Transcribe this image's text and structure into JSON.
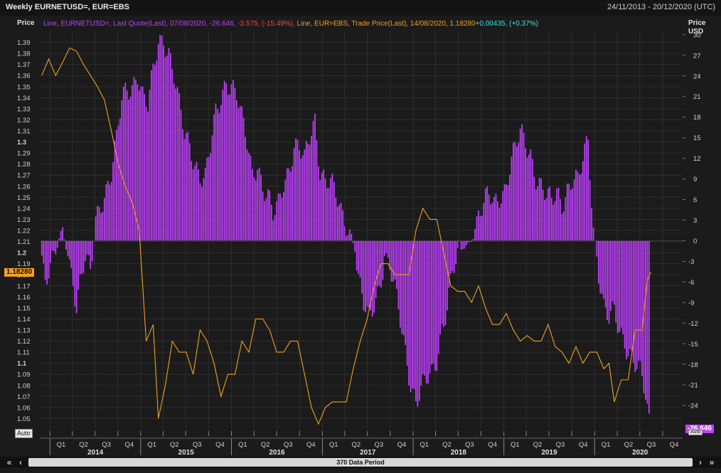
{
  "window": {
    "title": "Weekly EURNETUSD=, EUR=EBS",
    "date_range": "24/11/2013 - 20/12/2020 (UTC)"
  },
  "legend": {
    "s1_text": "Line, EURNETUSD=, Last Quote(Last), 07/08/2020, -26.646,",
    "s1_change": " -3.575, (-15.49%),",
    "s2_text": " Line, EUR=EBS, Trade Price(Last), 14/08/2020, 1.18280",
    "s2_change": "+0.00435, (+0.37%)"
  },
  "axis_labels": {
    "left_title": "Price",
    "right_title_1": "Price",
    "right_title_2": "USD"
  },
  "last_value_tags": {
    "left": "1.18280",
    "right": "-26.646"
  },
  "auto_buttons": {
    "left": "Auto",
    "right": "Auto"
  },
  "scrollbar": {
    "label": "370 Data Period",
    "btn_first": "«",
    "btn_prev": "‹",
    "btn_next": "›",
    "btn_last": "»"
  },
  "colors": {
    "background": "#1b1b1b",
    "grid": "#2e2e2e",
    "positioning": "#c040ff",
    "eurusd": "#f0a020",
    "legend_red": "#ff4040",
    "legend_cyan": "#40e0e0"
  },
  "chart_data": {
    "type": "bar",
    "title": "Weekly EURNETUSD=, EUR=EBS",
    "x_range": [
      "2013-11-24",
      "2020-12-20"
    ],
    "x_quarter_labels": [
      "Q1",
      "Q2",
      "Q3",
      "Q4",
      "Q1",
      "Q2",
      "Q3",
      "Q4",
      "Q1",
      "Q2",
      "Q3",
      "Q4",
      "Q1",
      "Q2",
      "Q3",
      "Q4",
      "Q1",
      "Q2",
      "Q3",
      "Q4",
      "Q1",
      "Q2",
      "Q3",
      "Q4",
      "Q1",
      "Q2",
      "Q3",
      "Q4"
    ],
    "x_year_labels": [
      "2014",
      "2015",
      "2016",
      "2017",
      "2018",
      "2019",
      "2020"
    ],
    "left_axis": {
      "label": "Price",
      "ylim": [
        1.04,
        1.4
      ],
      "ticks": [
        1.05,
        1.06,
        1.07,
        1.08,
        1.09,
        1.1,
        1.11,
        1.12,
        1.13,
        1.14,
        1.15,
        1.16,
        1.17,
        1.18,
        1.19,
        1.2,
        1.21,
        1.22,
        1.23,
        1.24,
        1.25,
        1.26,
        1.27,
        1.28,
        1.29,
        1.3,
        1.31,
        1.32,
        1.33,
        1.34,
        1.35,
        1.36,
        1.37,
        1.38,
        1.39
      ]
    },
    "right_axis": {
      "label": "Price USD",
      "ylim": [
        -27.5,
        30.5
      ],
      "ticks": [
        30,
        27,
        24,
        21,
        18,
        15,
        12,
        9,
        6,
        3,
        0,
        -3,
        -6,
        -9,
        -12,
        -15,
        -18,
        -21,
        -24
      ]
    },
    "series": [
      {
        "name": "EURNETUSD=",
        "kind": "bar",
        "axis": "right",
        "points": [
          [
            "2013-11-29",
            -2
          ],
          [
            "2013-12-13",
            -5
          ],
          [
            "2013-12-27",
            -4
          ],
          [
            "2014-01-17",
            -3
          ],
          [
            "2014-02-07",
            0
          ],
          [
            "2014-02-21",
            1.5
          ],
          [
            "2014-03-14",
            -2
          ],
          [
            "2014-04-04",
            -5
          ],
          [
            "2014-04-18",
            -9
          ],
          [
            "2014-05-02",
            -6
          ],
          [
            "2014-05-23",
            -3
          ],
          [
            "2014-06-13",
            -5.5
          ],
          [
            "2014-07-04",
            3
          ],
          [
            "2014-07-25",
            6
          ],
          [
            "2014-08-15",
            8
          ],
          [
            "2014-09-05",
            10
          ],
          [
            "2014-09-26",
            14
          ],
          [
            "2014-10-17",
            20
          ],
          [
            "2014-11-07",
            22
          ],
          [
            "2014-11-28",
            23
          ],
          [
            "2014-12-19",
            25
          ],
          [
            "2015-01-09",
            21
          ],
          [
            "2015-01-30",
            19
          ],
          [
            "2015-02-20",
            24
          ],
          [
            "2015-03-13",
            29
          ],
          [
            "2015-04-03",
            30
          ],
          [
            "2015-04-24",
            28
          ],
          [
            "2015-05-15",
            24
          ],
          [
            "2015-06-05",
            19
          ],
          [
            "2015-06-26",
            15
          ],
          [
            "2015-07-17",
            14
          ],
          [
            "2015-08-07",
            12
          ],
          [
            "2015-08-28",
            10
          ],
          [
            "2015-09-18",
            9
          ],
          [
            "2015-10-09",
            13
          ],
          [
            "2015-10-30",
            18
          ],
          [
            "2015-11-20",
            21
          ],
          [
            "2015-12-11",
            24
          ],
          [
            "2016-01-01",
            23
          ],
          [
            "2016-01-22",
            21
          ],
          [
            "2016-02-12",
            17
          ],
          [
            "2016-03-04",
            14
          ],
          [
            "2016-03-25",
            10
          ],
          [
            "2016-04-15",
            12
          ],
          [
            "2016-05-06",
            8
          ],
          [
            "2016-05-27",
            6
          ],
          [
            "2016-06-17",
            3
          ],
          [
            "2016-07-08",
            5
          ],
          [
            "2016-07-29",
            9
          ],
          [
            "2016-08-19",
            11
          ],
          [
            "2016-09-09",
            14
          ],
          [
            "2016-09-30",
            13
          ],
          [
            "2016-10-21",
            11
          ],
          [
            "2016-11-11",
            15
          ],
          [
            "2016-12-02",
            18
          ],
          [
            "2016-12-23",
            11
          ],
          [
            "2017-01-13",
            9
          ],
          [
            "2017-02-03",
            8
          ],
          [
            "2017-02-24",
            6
          ],
          [
            "2017-03-17",
            4
          ],
          [
            "2017-04-07",
            3
          ],
          [
            "2017-04-28",
            1
          ],
          [
            "2017-05-12",
            -1
          ],
          [
            "2017-05-26",
            -6
          ],
          [
            "2017-06-16",
            -10
          ],
          [
            "2017-07-07",
            -12
          ],
          [
            "2017-07-28",
            -9
          ],
          [
            "2017-08-18",
            -6
          ],
          [
            "2017-09-08",
            -2
          ],
          [
            "2017-09-29",
            -4
          ],
          [
            "2017-10-20",
            -8
          ],
          [
            "2017-11-10",
            -12
          ],
          [
            "2017-12-01",
            -16
          ],
          [
            "2017-12-22",
            -20
          ],
          [
            "2018-01-12",
            -23
          ],
          [
            "2018-02-02",
            -22
          ],
          [
            "2018-02-23",
            -21
          ],
          [
            "2018-03-16",
            -20
          ],
          [
            "2018-04-06",
            -17
          ],
          [
            "2018-04-27",
            -12
          ],
          [
            "2018-05-18",
            -9
          ],
          [
            "2018-06-08",
            -5
          ],
          [
            "2018-06-29",
            -3
          ],
          [
            "2018-07-20",
            -1
          ],
          [
            "2018-08-10",
            -0.5
          ],
          [
            "2018-08-31",
            1
          ],
          [
            "2018-09-21",
            4
          ],
          [
            "2018-10-12",
            5
          ],
          [
            "2018-11-02",
            6
          ],
          [
            "2018-11-23",
            5
          ],
          [
            "2018-12-14",
            7
          ],
          [
            "2019-01-04",
            8
          ],
          [
            "2019-01-25",
            11
          ],
          [
            "2019-02-15",
            13
          ],
          [
            "2019-03-08",
            15
          ],
          [
            "2019-03-29",
            14
          ],
          [
            "2019-04-19",
            13
          ],
          [
            "2019-05-10",
            10
          ],
          [
            "2019-05-31",
            8
          ],
          [
            "2019-06-21",
            6
          ],
          [
            "2019-07-12",
            5
          ],
          [
            "2019-08-02",
            7
          ],
          [
            "2019-08-23",
            6
          ],
          [
            "2019-09-13",
            8
          ],
          [
            "2019-10-04",
            9
          ],
          [
            "2019-10-25",
            8
          ],
          [
            "2019-11-15",
            11
          ],
          [
            "2019-12-06",
            15
          ],
          [
            "2019-12-27",
            2
          ],
          [
            "2020-01-17",
            -4
          ],
          [
            "2020-02-07",
            -10
          ],
          [
            "2020-02-28",
            -12
          ],
          [
            "2020-03-20",
            -11
          ],
          [
            "2020-04-10",
            -13
          ],
          [
            "2020-05-01",
            -14
          ],
          [
            "2020-05-22",
            -16
          ],
          [
            "2020-06-12",
            -18
          ],
          [
            "2020-07-03",
            -20
          ],
          [
            "2020-07-24",
            -23
          ],
          [
            "2020-08-07",
            -26.646
          ]
        ]
      },
      {
        "name": "EUR=EBS",
        "kind": "line",
        "axis": "left",
        "points": [
          [
            "2013-11-29",
            1.36
          ],
          [
            "2013-12-27",
            1.375
          ],
          [
            "2014-01-24",
            1.36
          ],
          [
            "2014-02-21",
            1.372
          ],
          [
            "2014-03-21",
            1.385
          ],
          [
            "2014-04-18",
            1.382
          ],
          [
            "2014-05-16",
            1.37
          ],
          [
            "2014-06-13",
            1.36
          ],
          [
            "2014-07-11",
            1.35
          ],
          [
            "2014-08-08",
            1.338
          ],
          [
            "2014-09-05",
            1.31
          ],
          [
            "2014-10-03",
            1.28
          ],
          [
            "2014-10-31",
            1.26
          ],
          [
            "2014-11-28",
            1.245
          ],
          [
            "2014-12-26",
            1.22
          ],
          [
            "2015-01-23",
            1.12
          ],
          [
            "2015-02-20",
            1.135
          ],
          [
            "2015-03-13",
            1.05
          ],
          [
            "2015-04-10",
            1.08
          ],
          [
            "2015-05-08",
            1.12
          ],
          [
            "2015-06-05",
            1.11
          ],
          [
            "2015-07-03",
            1.11
          ],
          [
            "2015-07-31",
            1.09
          ],
          [
            "2015-08-28",
            1.13
          ],
          [
            "2015-09-25",
            1.12
          ],
          [
            "2015-10-23",
            1.1
          ],
          [
            "2015-11-20",
            1.07
          ],
          [
            "2015-12-18",
            1.09
          ],
          [
            "2016-01-15",
            1.09
          ],
          [
            "2016-02-12",
            1.12
          ],
          [
            "2016-03-11",
            1.11
          ],
          [
            "2016-04-08",
            1.14
          ],
          [
            "2016-05-06",
            1.14
          ],
          [
            "2016-06-03",
            1.13
          ],
          [
            "2016-07-01",
            1.11
          ],
          [
            "2016-07-29",
            1.11
          ],
          [
            "2016-08-26",
            1.12
          ],
          [
            "2016-09-23",
            1.12
          ],
          [
            "2016-10-21",
            1.09
          ],
          [
            "2016-11-18",
            1.06
          ],
          [
            "2016-12-16",
            1.045
          ],
          [
            "2017-01-13",
            1.06
          ],
          [
            "2017-02-10",
            1.065
          ],
          [
            "2017-03-10",
            1.065
          ],
          [
            "2017-04-07",
            1.065
          ],
          [
            "2017-05-05",
            1.095
          ],
          [
            "2017-06-02",
            1.12
          ],
          [
            "2017-06-30",
            1.14
          ],
          [
            "2017-07-28",
            1.17
          ],
          [
            "2017-08-25",
            1.19
          ],
          [
            "2017-09-22",
            1.19
          ],
          [
            "2017-10-20",
            1.18
          ],
          [
            "2017-11-17",
            1.18
          ],
          [
            "2017-12-15",
            1.18
          ],
          [
            "2018-01-12",
            1.22
          ],
          [
            "2018-02-09",
            1.24
          ],
          [
            "2018-03-09",
            1.23
          ],
          [
            "2018-04-06",
            1.23
          ],
          [
            "2018-05-04",
            1.2
          ],
          [
            "2018-06-01",
            1.17
          ],
          [
            "2018-06-29",
            1.165
          ],
          [
            "2018-07-27",
            1.165
          ],
          [
            "2018-08-24",
            1.155
          ],
          [
            "2018-09-21",
            1.17
          ],
          [
            "2018-10-19",
            1.15
          ],
          [
            "2018-11-16",
            1.135
          ],
          [
            "2018-12-14",
            1.135
          ],
          [
            "2019-01-11",
            1.145
          ],
          [
            "2019-02-08",
            1.13
          ],
          [
            "2019-03-08",
            1.12
          ],
          [
            "2019-04-05",
            1.125
          ],
          [
            "2019-05-03",
            1.12
          ],
          [
            "2019-05-31",
            1.12
          ],
          [
            "2019-06-28",
            1.135
          ],
          [
            "2019-07-26",
            1.115
          ],
          [
            "2019-08-23",
            1.11
          ],
          [
            "2019-09-20",
            1.1
          ],
          [
            "2019-10-18",
            1.115
          ],
          [
            "2019-11-15",
            1.1
          ],
          [
            "2019-12-13",
            1.11
          ],
          [
            "2020-01-10",
            1.11
          ],
          [
            "2020-02-07",
            1.095
          ],
          [
            "2020-02-28",
            1.1
          ],
          [
            "2020-03-20",
            1.065
          ],
          [
            "2020-04-17",
            1.085
          ],
          [
            "2020-05-15",
            1.085
          ],
          [
            "2020-06-12",
            1.13
          ],
          [
            "2020-07-10",
            1.13
          ],
          [
            "2020-07-31",
            1.175
          ],
          [
            "2020-08-14",
            1.1828
          ]
        ]
      }
    ]
  }
}
